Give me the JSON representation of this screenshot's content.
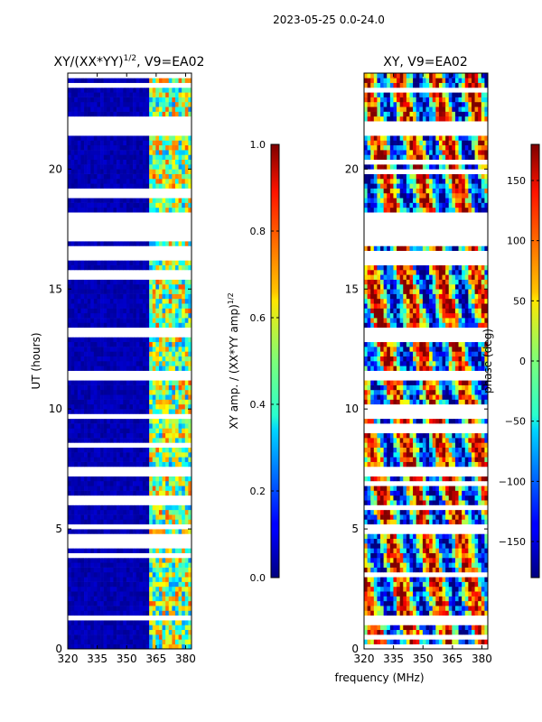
{
  "figure": {
    "suptitle": "2023-05-25 0.0-24.0",
    "shared_xlabel": "frequency (MHz)"
  },
  "chart_data": [
    {
      "type": "heatmap",
      "title": "XY/(XX*YY)",
      "title_exponent": "1/2",
      "title_suffix": ", V9=EA02",
      "xlabel": "",
      "ylabel": "UT (hours)",
      "xlim": [
        320,
        383
      ],
      "ylim": [
        0,
        24
      ],
      "xticks": [
        320,
        335,
        350,
        365,
        380
      ],
      "yticks": [
        0,
        5,
        10,
        15,
        20
      ],
      "colorbar": {
        "label": "XY amp. / (XX*YY amp)",
        "label_exponent": "1/2",
        "range": [
          0.0,
          1.0
        ],
        "ticks": [
          "0.0",
          "0.2",
          "0.4",
          "0.6",
          "0.8",
          "1.0"
        ],
        "tick_values": [
          0.0,
          0.2,
          0.4,
          0.6,
          0.8,
          1.0
        ]
      }
    },
    {
      "type": "heatmap",
      "title": "XY, V9=EA02",
      "xlabel": "frequency (MHz)",
      "ylabel": "",
      "xlim": [
        320,
        383
      ],
      "ylim": [
        0,
        24
      ],
      "xticks": [
        320,
        335,
        350,
        365,
        380
      ],
      "yticks": [
        0,
        5,
        10,
        15,
        20
      ],
      "colorbar": {
        "label": "phase (deg)",
        "range": [
          -180,
          180
        ],
        "ticks": [
          "−150",
          "−100",
          "−50",
          "0",
          "50",
          "100",
          "150"
        ],
        "tick_values": [
          -150,
          -100,
          -50,
          0,
          50,
          100,
          150
        ]
      }
    }
  ],
  "flagged_ut_ranges": [
    [
      21.5,
      22.0
    ],
    [
      18.2,
      17.1
    ],
    [
      16.3,
      16.5
    ],
    [
      13.0,
      13.3
    ],
    [
      11.3,
      11.5
    ],
    [
      9.6,
      9.8
    ],
    [
      7.2,
      7.6
    ],
    [
      5.0,
      5.2
    ],
    [
      1.3,
      1.4
    ]
  ],
  "colors": {
    "amp_low": "#00008f",
    "flag": "#ffffff",
    "axis": "#000000"
  }
}
